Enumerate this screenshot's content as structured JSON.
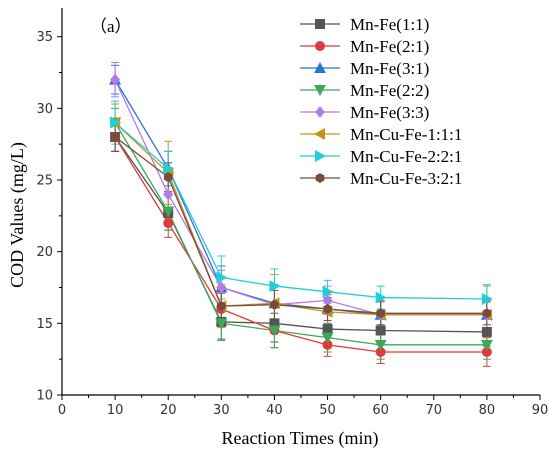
{
  "chart_data": {
    "type": "line",
    "panel_label": "（a）",
    "xlabel": "Reaction Times (min)",
    "ylabel": "COD Values (mg/L)",
    "xlim": [
      0,
      90
    ],
    "ylim": [
      10,
      37
    ],
    "x_ticks": [
      0,
      10,
      20,
      30,
      40,
      50,
      60,
      70,
      80,
      90
    ],
    "y_ticks": [
      10,
      15,
      20,
      25,
      30,
      35
    ],
    "grid": false,
    "legend_position": "top-right",
    "x": [
      10,
      20,
      30,
      40,
      50,
      60,
      80
    ],
    "series": [
      {
        "name": "Mn-Fe(1:1)",
        "color": "#555555",
        "marker": "square",
        "values": [
          28.0,
          22.7,
          15.1,
          15.0,
          14.6,
          14.5,
          14.4
        ],
        "errors": [
          1.0,
          1.2,
          1.2,
          1.3,
          1.1,
          1.0,
          1.0
        ]
      },
      {
        "name": "Mn-Fe(2:1)",
        "color": "#e03a3a",
        "marker": "circle",
        "values": [
          28.0,
          22.0,
          16.0,
          14.5,
          13.5,
          13.0,
          13.0
        ],
        "errors": [
          1.0,
          1.0,
          1.1,
          1.2,
          0.8,
          0.8,
          1.0
        ]
      },
      {
        "name": "Mn-Fe(3:1)",
        "color": "#2f6fe0",
        "marker": "triangle-up",
        "values": [
          32.0,
          25.8,
          17.5,
          16.4,
          16.0,
          15.6,
          15.6
        ],
        "errors": [
          1.0,
          1.2,
          1.5,
          1.3,
          1.0,
          1.0,
          1.0
        ]
      },
      {
        "name": "Mn-Fe(2:2)",
        "color": "#3aaa5a",
        "marker": "triangle-down",
        "values": [
          29.0,
          22.8,
          15.0,
          14.5,
          14.0,
          13.5,
          13.5
        ],
        "errors": [
          1.0,
          1.3,
          1.2,
          1.2,
          1.0,
          1.0,
          1.0
        ]
      },
      {
        "name": "Mn-Fe(3:3)",
        "color": "#b37be8",
        "marker": "diamond",
        "values": [
          32.0,
          24.0,
          17.5,
          16.3,
          16.6,
          15.6,
          15.6
        ],
        "errors": [
          1.2,
          1.5,
          1.2,
          1.4,
          1.0,
          1.0,
          1.0
        ]
      },
      {
        "name": "Mn-Cu-Fe-1:1:1",
        "color": "#c89416",
        "marker": "triangle-left",
        "values": [
          29.0,
          25.5,
          16.2,
          16.4,
          15.8,
          15.6,
          15.6
        ],
        "errors": [
          1.3,
          2.2,
          1.5,
          2.0,
          1.2,
          1.2,
          2.0
        ]
      },
      {
        "name": "Mn-Cu-Fe-2:2:1",
        "color": "#1fcfd8",
        "marker": "triangle-right",
        "values": [
          29.0,
          25.8,
          18.2,
          17.6,
          17.2,
          16.8,
          16.7
        ],
        "errors": [
          1.5,
          1.2,
          1.5,
          1.2,
          0.8,
          0.8,
          1.0
        ]
      },
      {
        "name": "Mn-Cu-Fe-3:2:1",
        "color": "#7a4a3a",
        "marker": "hexagon",
        "values": [
          28.0,
          25.2,
          16.2,
          16.3,
          16.0,
          15.7,
          15.7
        ],
        "errors": [
          1.0,
          1.0,
          1.2,
          1.0,
          0.8,
          0.8,
          0.8
        ]
      }
    ]
  }
}
